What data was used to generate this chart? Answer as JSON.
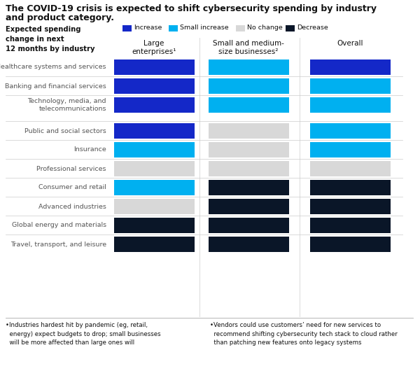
{
  "title_line1": "The COVID-19 crisis is expected to shift cybersecurity spending by industry",
  "title_line2": "and product category.",
  "col_headers": [
    "Large\nenterprises¹",
    "Small and medium-\nsize businesses²",
    "Overall"
  ],
  "industries": [
    "Healthcare systems and services",
    "Banking and financial services",
    "Technology, media, and\ntelecommunications",
    "Public and social sectors",
    "Insurance",
    "Professional services",
    "Consumer and retail",
    "Advanced industries",
    "Global energy and materials",
    "Travel, transport, and leisure"
  ],
  "colors": {
    "increase": "#1428c8",
    "small_increase": "#00b0f0",
    "no_change": "#d8d8d8",
    "decrease": "#0a1628"
  },
  "data": {
    "large_enterprises": [
      "increase",
      "increase",
      "increase",
      "increase",
      "small_increase",
      "no_change",
      "small_increase",
      "no_change",
      "decrease",
      "decrease"
    ],
    "smb": [
      "small_increase",
      "small_increase",
      "small_increase",
      "no_change",
      "no_change",
      "no_change",
      "decrease",
      "decrease",
      "decrease",
      "decrease"
    ],
    "overall": [
      "increase",
      "small_increase",
      "small_increase",
      "small_increase",
      "small_increase",
      "no_change",
      "decrease",
      "decrease",
      "decrease",
      "decrease"
    ]
  },
  "footnote1": "•Industries hardest hit by pandemic (eg, retail,\n  energy) expect budgets to drop; small businesses\n  will be more affected than large ones will",
  "footnote2": "•Vendors could use customers’ need for new services to\n  recommend shifting cybersecurity tech stack to cloud rather\n  than patching new features onto legacy systems",
  "bg": "#ffffff",
  "text_dark": "#111111",
  "text_mid": "#555555",
  "sep_color": "#cccccc"
}
